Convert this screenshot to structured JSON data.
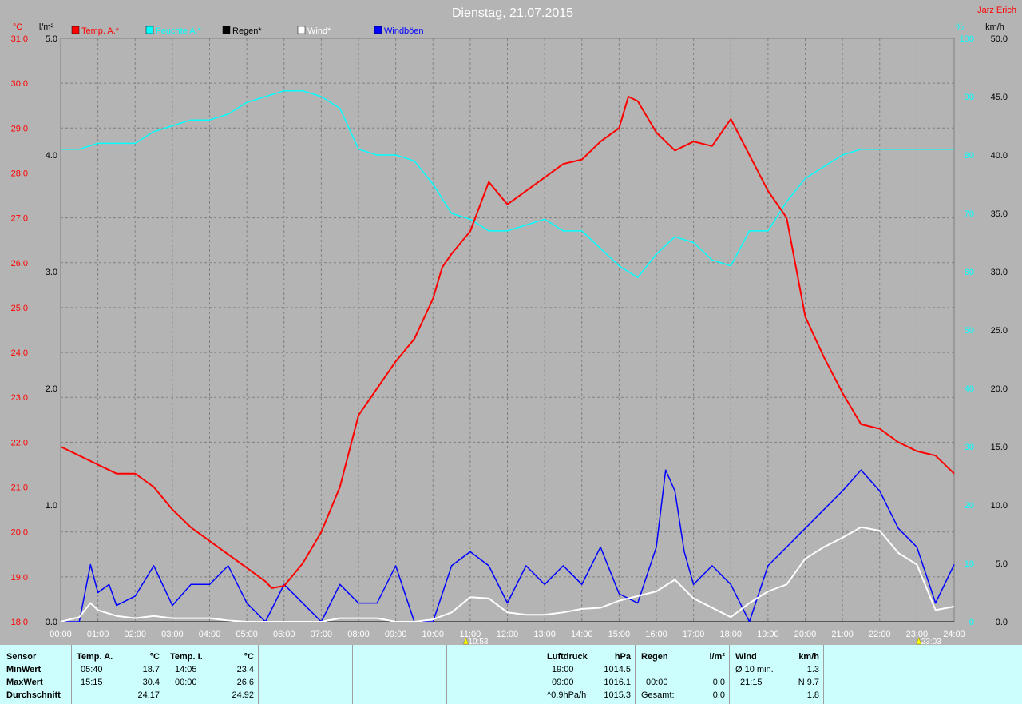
{
  "title": "Dienstag, 21.07.2015",
  "author": "Jarz Erich",
  "units": {
    "temp": "°C",
    "rain": "l/m²",
    "hum": "%",
    "wind": "km/h"
  },
  "legend": [
    {
      "label": "Temp. A.*",
      "color": "#ff0000"
    },
    {
      "label": "Feuchte A.*",
      "color": "#00ffff"
    },
    {
      "label": "Regen*",
      "color": "#000000"
    },
    {
      "label": "Wind*",
      "color": "#ffffff"
    },
    {
      "label": "Windböen",
      "color": "#0000ff"
    }
  ],
  "markers": [
    "10:53",
    "23:03"
  ],
  "chart_data": {
    "type": "line",
    "x_ticks": [
      "00:00",
      "01:00",
      "02:00",
      "03:00",
      "04:00",
      "05:00",
      "06:00",
      "07:00",
      "08:00",
      "09:00",
      "10:00",
      "11:00",
      "12:00",
      "13:00",
      "14:00",
      "15:00",
      "16:00",
      "17:00",
      "18:00",
      "19:00",
      "20:00",
      "21:00",
      "22:00",
      "23:00",
      "24:00"
    ],
    "axes": {
      "temp": {
        "range": [
          18.0,
          31.0
        ],
        "ticks": [
          "18.0",
          "19.0",
          "20.0",
          "21.0",
          "22.0",
          "23.0",
          "24.0",
          "25.0",
          "26.0",
          "27.0",
          "28.0",
          "29.0",
          "30.0",
          "31.0"
        ]
      },
      "rain": {
        "range": [
          0.0,
          5.0
        ],
        "ticks": [
          "0.0",
          "1.0",
          "2.0",
          "3.0",
          "4.0",
          "5.0"
        ]
      },
      "hum": {
        "range": [
          0,
          100
        ],
        "ticks": [
          "0",
          "10",
          "20",
          "30",
          "40",
          "50",
          "60",
          "70",
          "80",
          "90",
          "100"
        ]
      },
      "wind": {
        "range": [
          0.0,
          50.0
        ],
        "ticks": [
          "0.0",
          "5.0",
          "10.0",
          "15.0",
          "20.0",
          "25.0",
          "30.0",
          "35.0",
          "40.0",
          "45.0",
          "50.0"
        ]
      }
    },
    "series": [
      {
        "name": "Temp. A.*",
        "axis": "temp",
        "color": "#ff0000",
        "x": [
          0,
          0.5,
          1,
          1.5,
          2,
          2.5,
          3,
          3.5,
          4,
          4.5,
          5,
          5.5,
          5.67,
          6,
          6.5,
          7,
          7.5,
          8,
          8.5,
          9,
          9.5,
          10,
          10.25,
          10.5,
          11,
          11.5,
          12,
          12.5,
          13,
          13.5,
          14,
          14.5,
          15,
          15.25,
          15.5,
          16,
          16.5,
          17,
          17.5,
          18,
          18.5,
          19,
          19.5,
          20,
          20.5,
          21,
          21.5,
          22,
          22.5,
          23,
          23.5,
          24
        ],
        "values": [
          21.9,
          21.7,
          21.5,
          21.3,
          21.3,
          21.0,
          20.5,
          20.1,
          19.8,
          19.5,
          19.2,
          18.9,
          18.75,
          18.8,
          19.3,
          20.0,
          21.0,
          22.6,
          23.2,
          23.8,
          24.3,
          25.2,
          25.9,
          26.2,
          26.7,
          27.8,
          27.3,
          27.6,
          27.9,
          28.2,
          28.3,
          28.7,
          29.0,
          29.7,
          29.6,
          28.9,
          28.5,
          28.7,
          28.6,
          29.2,
          28.4,
          27.6,
          27.0,
          24.8,
          23.9,
          23.1,
          22.4,
          22.3,
          22.0,
          21.8,
          21.7,
          21.3
        ]
      },
      {
        "name": "Feuchte A.*",
        "axis": "hum",
        "color": "#00ffff",
        "x": [
          0,
          0.5,
          1,
          1.5,
          2,
          2.5,
          3,
          3.5,
          4,
          4.5,
          5,
          5.5,
          6,
          6.5,
          7,
          7.5,
          8,
          8.5,
          9,
          9.5,
          10,
          10.5,
          11,
          11.5,
          12,
          12.5,
          13,
          13.5,
          14,
          14.5,
          15,
          15.5,
          16,
          16.5,
          17,
          17.5,
          18,
          18.5,
          19,
          19.5,
          20,
          20.5,
          21,
          21.5,
          22,
          22.5,
          23,
          23.5,
          24
        ],
        "values": [
          81,
          81,
          82,
          82,
          82,
          84,
          85,
          86,
          86,
          87,
          89,
          90,
          91,
          91,
          90,
          88,
          81,
          80,
          80,
          79,
          75,
          70,
          69,
          67,
          67,
          68,
          69,
          67,
          67,
          64,
          61,
          59,
          63,
          66,
          65,
          62,
          61,
          67,
          67,
          72,
          76,
          78,
          80,
          81,
          81,
          81,
          81,
          81,
          81
        ]
      },
      {
        "name": "Wind*",
        "axis": "wind",
        "color": "#ffffff",
        "x": [
          0,
          0.5,
          0.8,
          1,
          1.5,
          2,
          2.5,
          3,
          3.5,
          4,
          4.5,
          5,
          5.5,
          6,
          6.5,
          7,
          7.5,
          8,
          8.5,
          9,
          9.5,
          10,
          10.5,
          11,
          11.5,
          12,
          12.5,
          13,
          13.5,
          14,
          14.5,
          15,
          15.5,
          16,
          16.5,
          17,
          17.5,
          18,
          18.5,
          19,
          19.5,
          20,
          20.5,
          21,
          21.5,
          22,
          22.5,
          23,
          23.5,
          24
        ],
        "values": [
          0,
          0.4,
          1.6,
          1.0,
          0.5,
          0.3,
          0.5,
          0.3,
          0.3,
          0.3,
          0.1,
          0.0,
          0.0,
          0.0,
          0.0,
          0.0,
          0.3,
          0.3,
          0.3,
          0.0,
          0.0,
          0.2,
          0.8,
          2.1,
          2.0,
          0.8,
          0.6,
          0.6,
          0.8,
          1.1,
          1.2,
          1.8,
          2.2,
          2.6,
          3.6,
          2.0,
          1.2,
          0.4,
          1.6,
          2.6,
          3.2,
          5.4,
          6.4,
          7.2,
          8.1,
          7.8,
          5.9,
          4.9,
          1.0,
          1.3
        ]
      },
      {
        "name": "Windböen",
        "axis": "wind",
        "color": "#0000ff",
        "x": [
          0,
          0.5,
          0.8,
          1,
          1.3,
          1.5,
          2,
          2.5,
          3,
          3.5,
          4,
          4.5,
          5,
          5.5,
          6,
          6.5,
          7,
          7.5,
          8,
          8.5,
          9,
          9.5,
          10,
          10.5,
          11,
          11.5,
          12,
          12.5,
          13,
          13.5,
          14,
          14.5,
          15,
          15.5,
          16,
          16.25,
          16.5,
          16.75,
          17,
          17.5,
          18,
          18.5,
          19,
          19.5,
          20,
          20.5,
          21,
          21.5,
          22,
          22.5,
          23,
          23.5,
          24
        ],
        "values": [
          0,
          0,
          4.9,
          2.5,
          3.2,
          1.4,
          2.2,
          4.8,
          1.4,
          3.2,
          3.2,
          4.8,
          1.6,
          0,
          3.2,
          1.6,
          0,
          3.2,
          1.6,
          1.6,
          4.8,
          0,
          0,
          4.8,
          6.0,
          4.8,
          1.6,
          4.8,
          3.2,
          4.8,
          3.2,
          6.4,
          2.4,
          1.6,
          6.4,
          13.0,
          11.2,
          6.0,
          3.2,
          4.8,
          3.2,
          0,
          4.8,
          6.4,
          8.0,
          9.6,
          11.2,
          13.0,
          11.2,
          8.0,
          6.4,
          1.6,
          4.9
        ]
      },
      {
        "name": "Regen*",
        "axis": "rain",
        "color": "#000000",
        "x": [
          0,
          24
        ],
        "values": [
          0,
          0
        ]
      }
    ]
  },
  "table": {
    "col1": {
      "header": "Sensor",
      "rows": [
        "MinWert",
        "MaxWert",
        "Durchschnitt"
      ]
    },
    "col2": {
      "header": "Temp. A.",
      "unit": "°C",
      "rows": [
        [
          "05:40",
          "18.7"
        ],
        [
          "15:15",
          "30.4"
        ],
        [
          "",
          "24.17"
        ]
      ]
    },
    "col3": {
      "header": "Temp. I.",
      "unit": "°C",
      "rows": [
        [
          "14:05",
          "23.4"
        ],
        [
          "00:00",
          "26.6"
        ],
        [
          "",
          "24.92"
        ]
      ]
    },
    "col4": {
      "header": "Luftdruck",
      "unit": "hPa",
      "rows": [
        [
          "19:00",
          "1014.5"
        ],
        [
          "09:00",
          "1016.1"
        ],
        [
          "^0.9hPa/h",
          "1015.3"
        ]
      ]
    },
    "col5": {
      "header": "Regen",
      "unit": "l/m²",
      "rows": [
        [
          "",
          ""
        ],
        [
          "00:00",
          "0.0"
        ],
        [
          "Gesamt:",
          "0.0"
        ]
      ],
      "note": "0.0"
    },
    "col6": {
      "header": "Wind",
      "unit": "km/h",
      "rows": [
        [
          "Ø 10 min.",
          "1.3"
        ],
        [
          "21:15",
          "N 9.7"
        ],
        [
          "",
          "1.8"
        ]
      ]
    }
  }
}
